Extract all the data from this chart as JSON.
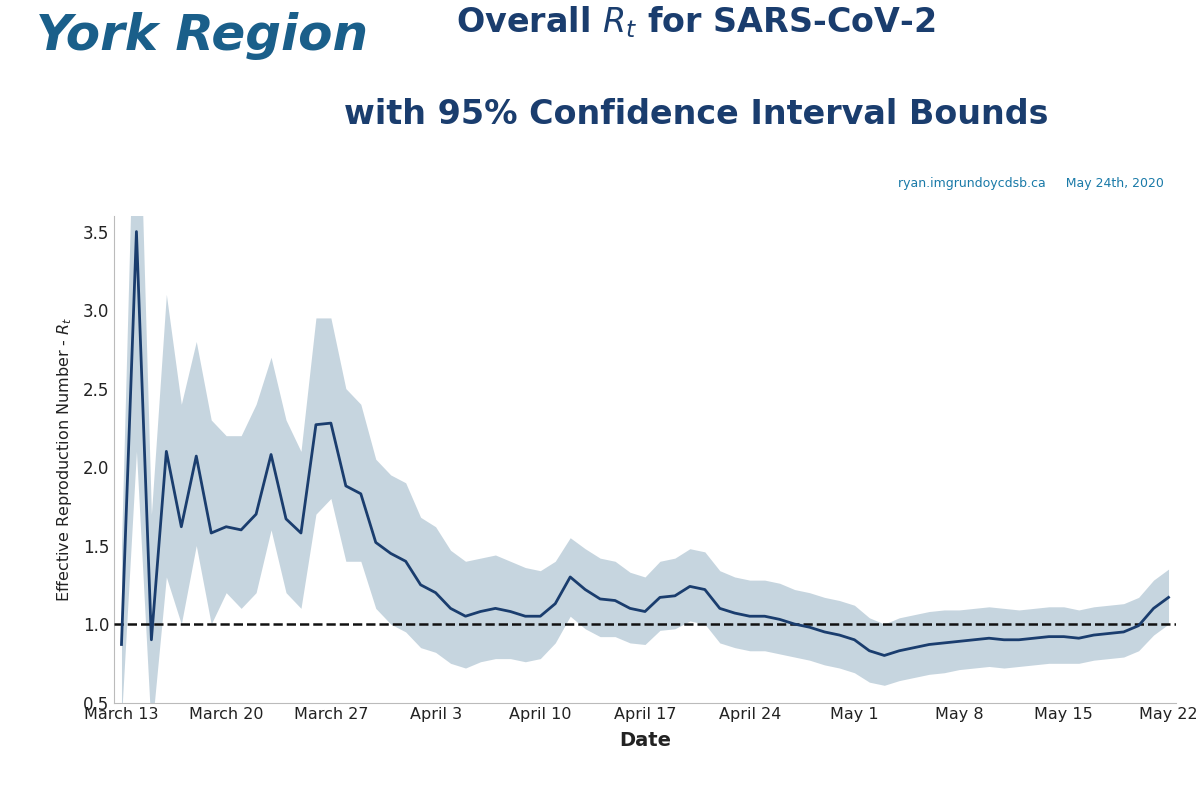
{
  "subtitle_right": "ryan.imgrundoycdsb.ca     May 24th, 2020",
  "ylabel": "Effective Reproduction Number - $R_t$",
  "xlabel": "Date",
  "ylim": [
    0.5,
    3.6
  ],
  "line_color": "#1a3d6e",
  "fill_color": "#a8bfce",
  "fill_alpha": 0.65,
  "dashed_color": "#111111",
  "background_color": "#ffffff",
  "rt": [
    0.87,
    3.5,
    0.9,
    2.1,
    1.62,
    2.07,
    1.58,
    1.62,
    1.6,
    1.7,
    2.08,
    1.67,
    1.58,
    2.27,
    2.28,
    1.88,
    1.83,
    1.52,
    1.45,
    1.4,
    1.25,
    1.2,
    1.1,
    1.05,
    1.08,
    1.1,
    1.08,
    1.05,
    1.05,
    1.13,
    1.3,
    1.22,
    1.16,
    1.15,
    1.1,
    1.08,
    1.17,
    1.18,
    1.24,
    1.22,
    1.1,
    1.07,
    1.05,
    1.05,
    1.03,
    1.0,
    0.98,
    0.95,
    0.93,
    0.9,
    0.83,
    0.8,
    0.83,
    0.85,
    0.87,
    0.88,
    0.89,
    0.9,
    0.91,
    0.9,
    0.9,
    0.91,
    0.92,
    0.92,
    0.91,
    0.93,
    0.94,
    0.95,
    0.99,
    1.1,
    1.17
  ],
  "rt_low": [
    0.4,
    2.1,
    0.3,
    1.3,
    1.0,
    1.5,
    1.0,
    1.2,
    1.1,
    1.2,
    1.6,
    1.2,
    1.1,
    1.7,
    1.8,
    1.4,
    1.4,
    1.1,
    1.0,
    0.95,
    0.85,
    0.82,
    0.75,
    0.72,
    0.76,
    0.78,
    0.78,
    0.76,
    0.78,
    0.88,
    1.05,
    0.97,
    0.92,
    0.92,
    0.88,
    0.87,
    0.96,
    0.97,
    1.02,
    1.0,
    0.88,
    0.85,
    0.83,
    0.83,
    0.81,
    0.79,
    0.77,
    0.74,
    0.72,
    0.69,
    0.63,
    0.61,
    0.64,
    0.66,
    0.68,
    0.69,
    0.71,
    0.72,
    0.73,
    0.72,
    0.73,
    0.74,
    0.75,
    0.75,
    0.75,
    0.77,
    0.78,
    0.79,
    0.83,
    0.93,
    1.0
  ],
  "rt_high": [
    1.5,
    5.0,
    1.7,
    3.1,
    2.4,
    2.8,
    2.3,
    2.2,
    2.2,
    2.4,
    2.7,
    2.3,
    2.1,
    2.95,
    2.95,
    2.5,
    2.4,
    2.05,
    1.95,
    1.9,
    1.68,
    1.62,
    1.47,
    1.4,
    1.42,
    1.44,
    1.4,
    1.36,
    1.34,
    1.4,
    1.55,
    1.48,
    1.42,
    1.4,
    1.33,
    1.3,
    1.4,
    1.42,
    1.48,
    1.46,
    1.34,
    1.3,
    1.28,
    1.28,
    1.26,
    1.22,
    1.2,
    1.17,
    1.15,
    1.12,
    1.04,
    1.0,
    1.04,
    1.06,
    1.08,
    1.09,
    1.09,
    1.1,
    1.11,
    1.1,
    1.09,
    1.1,
    1.11,
    1.11,
    1.09,
    1.11,
    1.12,
    1.13,
    1.17,
    1.28,
    1.35
  ],
  "xtick_labels": [
    "March 13",
    "March 20",
    "March 27",
    "April 3",
    "April 10",
    "April 17",
    "April 24",
    "May 1",
    "May 8",
    "May 15",
    "May 22"
  ],
  "xtick_positions": [
    0,
    7,
    14,
    21,
    28,
    35,
    42,
    49,
    56,
    63,
    70
  ],
  "ytick_values": [
    0.5,
    1.0,
    1.5,
    2.0,
    2.5,
    3.0,
    3.5
  ],
  "york_region_color": "#1a5f8a",
  "title_color": "#1a3d6e",
  "subtitle_color": "#1a7aa8",
  "york_region_fontsize": 36,
  "title_fontsize": 24,
  "subtitle_fontsize": 9
}
